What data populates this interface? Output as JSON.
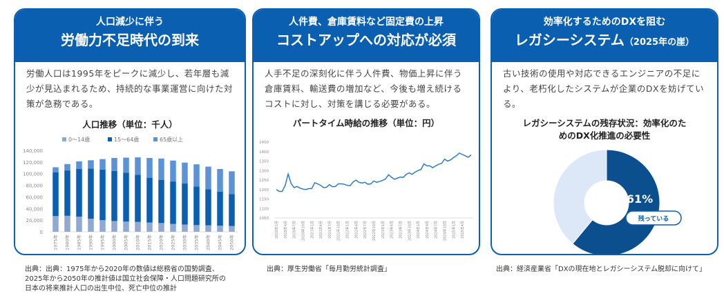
{
  "cards": [
    {
      "title1": "人口減少に伴う",
      "title2": "労働力不足時代の到来",
      "desc": "労働人口は1995年をピークに減少し、若年層も減少が見込まれるため、持続的な事業運営に向けた対策が急務である。",
      "source": "出典：出典：1975年から2020年の数値は総務省の国勢調査、2025年から2050年の推計値は国立社会保障・人口問題研究所の日本の将来推計人口の出生中位、死亡中位の推計"
    },
    {
      "title1": "人件費、倉庫賃料など固定費の上昇",
      "title2": "コストアップへの対応が必須",
      "desc": "人手不足の深刻化に伴う人件費、物価上昇に伴う倉庫賃料、輸送費の増加など、今後も増え続けるコストに対し、対策を講じる必要がある。",
      "source": "出典：厚生労働省「毎月勤労統計調査」"
    },
    {
      "title1": "効率化するためのDXを阻む",
      "title2": "レガシーシステム",
      "title2_sub": "（2025年の崖）",
      "desc": "古い技術の使用や対応できるエンジニアの不足により、老朽化したシステムが企業のDXを妨げている。",
      "source": "出典：経済産業省「DXの現在地とレガシーシステム脱却に向けて」"
    }
  ],
  "chart_data": [
    {
      "type": "bar",
      "stacked": true,
      "title": "人口推移（単位：千人）",
      "categories": [
        "1975年",
        "1980年",
        "1985年",
        "1990年",
        "1995年",
        "2000年",
        "2005年",
        "2010年",
        "2015年",
        "2020年",
        "2025年",
        "2030年",
        "2035年",
        "2040年",
        "2045年",
        "2050年"
      ],
      "series": [
        {
          "name": "0～14歳",
          "color": "#8fa8d4",
          "values": [
            27000,
            27500,
            26000,
            22500,
            20000,
            18500,
            17500,
            17000,
            16000,
            15000,
            13500,
            12500,
            11500,
            11000,
            10500,
            10000
          ]
        },
        {
          "name": "15～64歳",
          "color": "#0a5fb0",
          "values": [
            75000,
            78000,
            82000,
            86000,
            87000,
            86000,
            84000,
            81000,
            77000,
            74000,
            73000,
            70500,
            66500,
            62000,
            58500,
            55000
          ]
        },
        {
          "name": "65歳以上",
          "color": "#5b93d6",
          "values": [
            9000,
            11000,
            13000,
            14500,
            18000,
            22500,
            26000,
            30000,
            34000,
            37000,
            36000,
            36000,
            38000,
            39000,
            39000,
            39000
          ]
        }
      ],
      "ylim": [
        0,
        140000
      ],
      "yticks": [
        "0",
        "20,000",
        "40,000",
        "60,000",
        "80,000",
        "100,000",
        "120,000",
        "140,000"
      ],
      "legend": "top"
    },
    {
      "type": "line",
      "title": "パートタイム時給の推移（単位：円）",
      "ylim": [
        1050,
        1450
      ],
      "yticks": [
        "1050",
        "1100",
        "1150",
        "1200",
        "1250",
        "1300",
        "1350",
        "1400",
        "1450"
      ],
      "xlabels": [
        "2020年1月",
        "2020年4月",
        "2020年7月",
        "2020年10月",
        "2021年1月",
        "2021年4月",
        "2021年7月",
        "2021年10月",
        "2022年1月",
        "2022年4月",
        "2022年7月",
        "2022年10月",
        "2023年1月",
        "2023年4月",
        "2023年7月",
        "2023年10月",
        "2024年1月",
        "2024年4月",
        "2024年7月",
        "2024年10月",
        "2025年1月",
        "2025年4月"
      ],
      "color": "#2a7ac8",
      "values": [
        1200,
        1190,
        1190,
        1222,
        1282,
        1232,
        1210,
        1216,
        1208,
        1202,
        1200,
        1205,
        1205,
        1236,
        1230,
        1222,
        1210,
        1212,
        1226,
        1215,
        1216,
        1230,
        1230,
        1228,
        1222,
        1220,
        1240,
        1250,
        1238,
        1234,
        1238,
        1228,
        1230,
        1245,
        1238,
        1243,
        1248,
        1256,
        1278,
        1265,
        1254,
        1260,
        1266,
        1264,
        1280,
        1288,
        1280,
        1292,
        1300,
        1306,
        1335,
        1325,
        1325,
        1315,
        1325,
        1333,
        1338,
        1360,
        1350,
        1356,
        1368,
        1378,
        1392,
        1385,
        1378,
        1370,
        1383
      ]
    },
    {
      "type": "pie",
      "donut": true,
      "title": "レガシーシステムの残存状況：効率化のためのDX化推進の必要性",
      "slices": [
        {
          "label": "残っている",
          "value": 61,
          "color": "#0b4f8e"
        },
        {
          "label": "",
          "value": 39,
          "color": "#dce8f7"
        }
      ],
      "center_label": "61%"
    }
  ]
}
